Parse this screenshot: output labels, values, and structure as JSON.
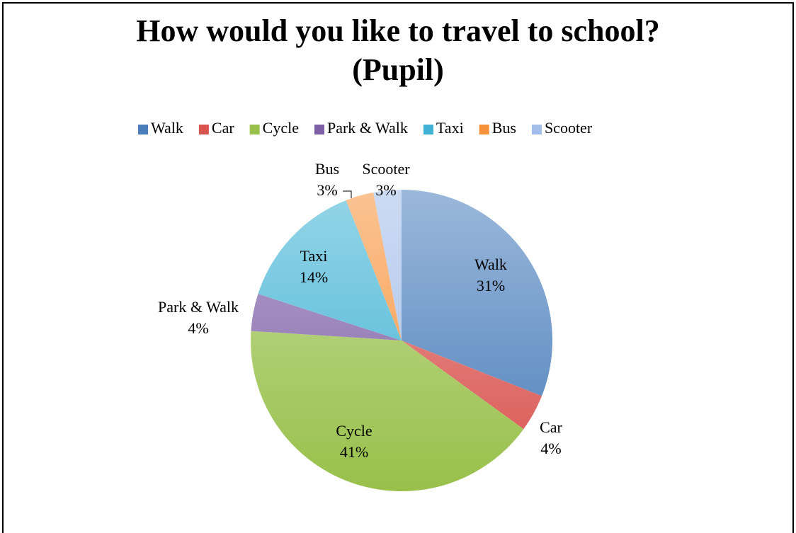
{
  "chart_data": {
    "type": "pie",
    "title": [
      "How would you like to travel to school?",
      "(Pupil)"
    ],
    "categories": [
      "Walk",
      "Car",
      "Cycle",
      "Park & Walk",
      "Taxi",
      "Bus",
      "Scooter"
    ],
    "values": [
      31,
      4,
      41,
      4,
      14,
      3,
      3
    ],
    "value_labels": [
      "31%",
      "4%",
      "41%",
      "4%",
      "14%",
      "3%",
      "3%"
    ],
    "colors": [
      "#4a7ebb",
      "#d9534f",
      "#98c04a",
      "#7d5fa6",
      "#3fb2d4",
      "#f7923a",
      "#a3bdea"
    ],
    "legend": "top"
  }
}
